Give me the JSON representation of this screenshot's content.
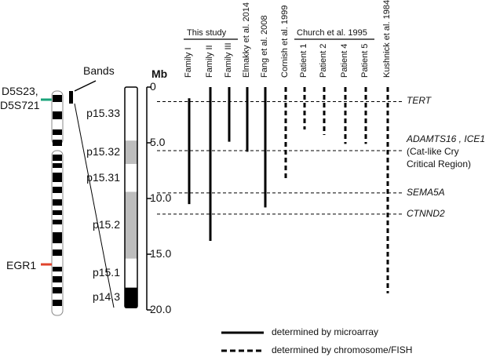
{
  "chromosome": {
    "marker_top": "D5S23,\nD5S721",
    "marker_top_line1": "D5S23,",
    "marker_top_line2": "D5S721",
    "marker_egr": "EGR1",
    "marker_top_color": "#1aa37a",
    "marker_egr_color": "#e0442c"
  },
  "bands_title": "Bands",
  "mb_title": "Mb",
  "bands": [
    {
      "label": "p15.33",
      "start": 0.0,
      "end": 4.8,
      "fill": "#ffffff"
    },
    {
      "label": "p15.32",
      "start": 4.8,
      "end": 6.9,
      "fill": "#bdbdbd"
    },
    {
      "label": "p15.31",
      "start": 6.9,
      "end": 9.4,
      "fill": "#ffffff"
    },
    {
      "label": "p15.2",
      "start": 9.4,
      "end": 15.4,
      "fill": "#bdbdbd"
    },
    {
      "label": "p15.1",
      "start": 15.4,
      "end": 18.0,
      "fill": "#ffffff"
    },
    {
      "label": "p14.3",
      "start": 18.0,
      "end": 19.8,
      "fill": "#000000"
    }
  ],
  "scale": {
    "ticks": [
      "0",
      "5.0",
      "10.0",
      "15.0",
      "20.0"
    ],
    "tick_values": [
      0,
      5,
      10,
      15,
      20
    ]
  },
  "groups": [
    {
      "name": "This study"
    },
    {
      "name": "Church et al. 1995"
    }
  ],
  "columns": [
    {
      "label": "Family I",
      "start": 1.0,
      "end": 10.5,
      "style": "solid"
    },
    {
      "label": "Family II",
      "start": 0.0,
      "end": 13.8,
      "style": "solid"
    },
    {
      "label": "Family III",
      "start": 0.0,
      "end": 4.9,
      "style": "solid"
    },
    {
      "label": "Elmakky et al. 2014",
      "start": 0.0,
      "end": 5.8,
      "style": "solid"
    },
    {
      "label": "Fang et al. 2008",
      "start": 0.0,
      "end": 10.8,
      "style": "solid"
    },
    {
      "label": "Cornish et al. 1999",
      "start": 0.0,
      "end": 8.2,
      "style": "dashed"
    },
    {
      "label": "Patient 1",
      "start": 0.0,
      "end": 3.8,
      "style": "dashed"
    },
    {
      "label": "Patient 2",
      "start": 0.0,
      "end": 4.3,
      "style": "dashed"
    },
    {
      "label": "Patient 4",
      "start": 0.0,
      "end": 5.1,
      "style": "dashed"
    },
    {
      "label": "Patient 5",
      "start": 0.0,
      "end": 5.1,
      "style": "dashed"
    },
    {
      "label": "Kushnick et al. 1984",
      "start": 0.0,
      "end": 18.5,
      "style": "dashed"
    }
  ],
  "genes": [
    {
      "name": "TERT",
      "position": 1.3
    },
    {
      "name": "ADAMTS16 , ICE1",
      "position": 5.7,
      "note1": "(Cat-like Cry",
      "note2": "Critical Region)"
    },
    {
      "name": "SEMA5A",
      "position": 9.5
    },
    {
      "name": "CTNND2",
      "position": 11.4
    }
  ],
  "legend": {
    "solid": "determined by microarray",
    "dashed": "determined by chromosome/FISH"
  }
}
